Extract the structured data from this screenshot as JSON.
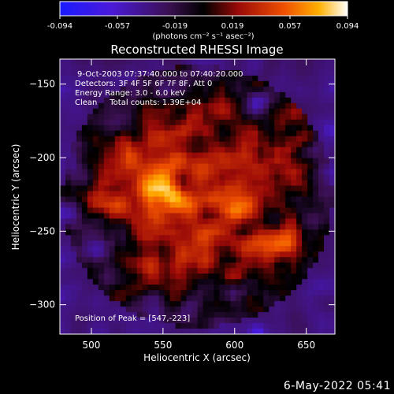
{
  "colorbar": {
    "ticks": [
      "-0.094",
      "-0.057",
      "-0.019",
      "0.019",
      "0.057",
      "0.094"
    ],
    "unit_label": "(photons cm⁻² s⁻¹ asec⁻²)",
    "range": [
      -0.094,
      0.094
    ]
  },
  "chart_data": {
    "type": "heatmap",
    "title": "Reconstructed RHESSI Image",
    "xlabel": "Heliocentric X (arcsec)",
    "ylabel": "Heliocentric Y (arcsec)",
    "xlim": [
      478,
      670
    ],
    "ylim": [
      -320,
      -133
    ],
    "xticks": [
      500,
      550,
      600,
      650
    ],
    "yticks": [
      -150,
      -200,
      -250,
      -300
    ],
    "colormap": "hot with blue-violet negatives",
    "annotations": [
      "9-Oct-2003 07:37:40.000 to 07:40:20.000",
      "Detectors: 3F 4F 5F 6F 7F 8F, Att 0",
      "Energy Range: 3.0 - 6.0 keV",
      "Clean     Total counts: 1.39E+04"
    ],
    "peak_label": "Position of Peak = [547,-223]",
    "peak": [
      547,
      -223
    ],
    "sources": [
      {
        "x": 547,
        "y": -223,
        "peak": 0.094
      },
      {
        "x": 635,
        "y": -262,
        "peak": 0.07
      },
      {
        "x": 600,
        "y": -238,
        "peak": 0.055
      },
      {
        "x": 520,
        "y": -190,
        "peak": 0.045
      }
    ]
  },
  "footer": {
    "date": "6-May-2022 05:41"
  }
}
